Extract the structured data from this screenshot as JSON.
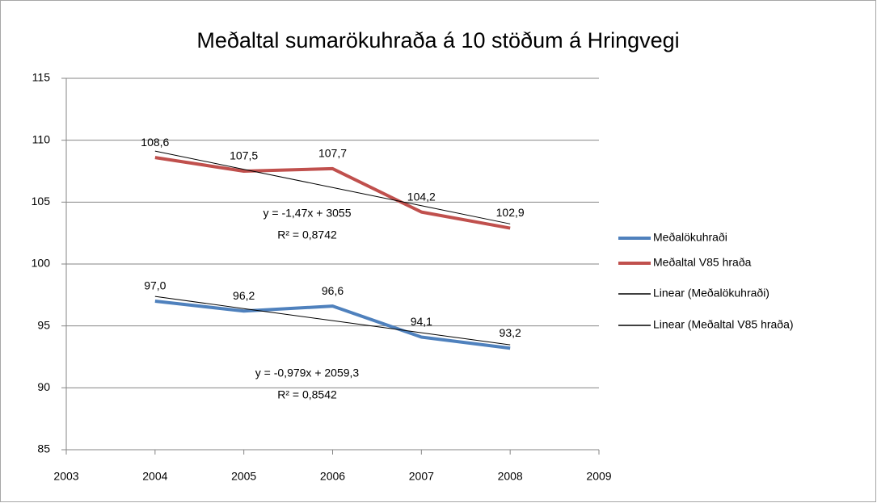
{
  "chart_data": {
    "type": "line",
    "title": "Meðaltal sumarökuhraða á 10 stöðum á Hringvegi",
    "x": [
      2004,
      2005,
      2006,
      2007,
      2008
    ],
    "xlim": [
      2003,
      2009
    ],
    "xticks": [
      2003,
      2004,
      2005,
      2006,
      2007,
      2008,
      2009
    ],
    "ylim": [
      85,
      115
    ],
    "yticks": [
      85,
      90,
      95,
      100,
      105,
      110,
      115
    ],
    "grid": true,
    "legend": "right",
    "series": [
      {
        "name": "Meðalökuhraði",
        "color": "#4f81bd",
        "width": 4,
        "values": [
          97.0,
          96.2,
          96.6,
          94.1,
          93.2
        ],
        "value_labels": [
          "97,0",
          "96,2",
          "96,6",
          "94,1",
          "93,2"
        ]
      },
      {
        "name": "Meðaltal V85 hraða",
        "color": "#c0504d",
        "width": 4,
        "values": [
          108.6,
          107.5,
          107.7,
          104.2,
          102.9
        ],
        "value_labels": [
          "108,6",
          "107,5",
          "107,7",
          "104,2",
          "102,9"
        ]
      },
      {
        "name": "Linear (Meðalökuhraði)",
        "color": "#000000",
        "width": 1,
        "values": [
          97.38,
          96.4,
          95.43,
          94.45,
          93.47
        ]
      },
      {
        "name": "Linear (Meðaltal V85 hraða)",
        "color": "#000000",
        "width": 1,
        "values": [
          109.12,
          107.65,
          106.18,
          104.71,
          103.24
        ]
      }
    ],
    "annotations": [
      "y = -1,47x + 3055",
      "R² = 0,8742",
      "y = -0,979x + 2059,3",
      "R² = 0,8542"
    ]
  }
}
